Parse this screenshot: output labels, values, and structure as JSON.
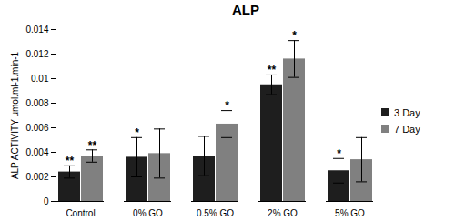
{
  "chart_data": {
    "type": "bar",
    "title": "ALP",
    "y_label": "ALP ACTIVITY umol.ml-1.min-1",
    "categories": [
      "Control",
      "0% GO",
      "0.5% GO",
      "2% GO",
      "5% GO"
    ],
    "series": [
      {
        "name": "3 Day",
        "color": "#1e1e1e",
        "values": [
          0.0024,
          0.0036,
          0.0037,
          0.0095,
          0.0025
        ],
        "errors": [
          0.0005,
          0.0016,
          0.0016,
          0.0008,
          0.001
        ],
        "significance": [
          "**",
          "*",
          null,
          "**",
          "*"
        ]
      },
      {
        "name": "7 Day",
        "color": "#808080",
        "values": [
          0.0037,
          0.0039,
          0.0063,
          0.0116,
          0.0034
        ],
        "errors": [
          0.0005,
          0.002,
          0.0011,
          0.0015,
          0.0018
        ],
        "significance": [
          "**",
          null,
          "*",
          "*",
          null
        ]
      }
    ],
    "ylim": [
      0,
      0.014
    ],
    "yticks": [
      0,
      0.002,
      0.004,
      0.006,
      0.008,
      0.01,
      0.012,
      0.014
    ],
    "legend": "right"
  }
}
